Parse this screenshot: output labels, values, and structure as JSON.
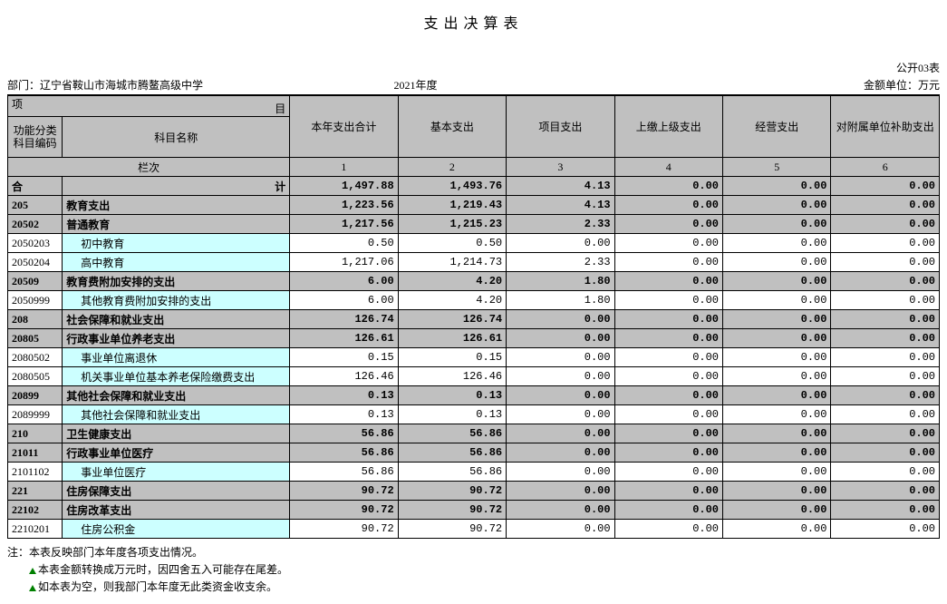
{
  "title": "支出决算表",
  "form_no": "公开03表",
  "dept_label": "部门：",
  "dept_name": "辽宁省鞍山市海城市腾鳌高级中学",
  "year": "2021年度",
  "unit": "金额单位：万元",
  "header": {
    "xm_top": "项",
    "xm_bot": "目",
    "code": "功能分类科目编码",
    "name": "科目名称",
    "c1": "本年支出合计",
    "c2": "基本支出",
    "c3": "项目支出",
    "c4": "上缴上级支出",
    "c5": "经营支出",
    "c6": "对附属单位补助支出",
    "lanci": "栏次",
    "n1": "1",
    "n2": "2",
    "n3": "3",
    "n4": "4",
    "n5": "5",
    "n6": "6",
    "total_label": "合",
    "total_label2": "计"
  },
  "total": {
    "v1": "1,497.88",
    "v2": "1,493.76",
    "v3": "4.13",
    "v4": "0.00",
    "v5": "0.00",
    "v6": "0.00"
  },
  "rows": [
    {
      "code": "205",
      "name": "教育支出",
      "bold": true,
      "v": [
        "1,223.56",
        "1,219.43",
        "4.13",
        "0.00",
        "0.00",
        "0.00"
      ]
    },
    {
      "code": "20502",
      "name": "普通教育",
      "bold": true,
      "v": [
        "1,217.56",
        "1,215.23",
        "2.33",
        "0.00",
        "0.00",
        "0.00"
      ]
    },
    {
      "code": "2050203",
      "name": "初中教育",
      "cyan": true,
      "indent": 1,
      "v": [
        "0.50",
        "0.50",
        "0.00",
        "0.00",
        "0.00",
        "0.00"
      ]
    },
    {
      "code": "2050204",
      "name": "高中教育",
      "cyan": true,
      "indent": 1,
      "v": [
        "1,217.06",
        "1,214.73",
        "2.33",
        "0.00",
        "0.00",
        "0.00"
      ]
    },
    {
      "code": "20509",
      "name": "教育费附加安排的支出",
      "bold": true,
      "v": [
        "6.00",
        "4.20",
        "1.80",
        "0.00",
        "0.00",
        "0.00"
      ]
    },
    {
      "code": "2050999",
      "name": "其他教育费附加安排的支出",
      "cyan": true,
      "indent": 1,
      "v": [
        "6.00",
        "4.20",
        "1.80",
        "0.00",
        "0.00",
        "0.00"
      ]
    },
    {
      "code": "208",
      "name": "社会保障和就业支出",
      "bold": true,
      "v": [
        "126.74",
        "126.74",
        "0.00",
        "0.00",
        "0.00",
        "0.00"
      ]
    },
    {
      "code": "20805",
      "name": "行政事业单位养老支出",
      "bold": true,
      "v": [
        "126.61",
        "126.61",
        "0.00",
        "0.00",
        "0.00",
        "0.00"
      ]
    },
    {
      "code": "2080502",
      "name": "事业单位离退休",
      "cyan": true,
      "indent": 1,
      "v": [
        "0.15",
        "0.15",
        "0.00",
        "0.00",
        "0.00",
        "0.00"
      ]
    },
    {
      "code": "2080505",
      "name": "机关事业单位基本养老保险缴费支出",
      "cyan": true,
      "indent": 1,
      "v": [
        "126.46",
        "126.46",
        "0.00",
        "0.00",
        "0.00",
        "0.00"
      ]
    },
    {
      "code": "20899",
      "name": "其他社会保障和就业支出",
      "bold": true,
      "v": [
        "0.13",
        "0.13",
        "0.00",
        "0.00",
        "0.00",
        "0.00"
      ]
    },
    {
      "code": "2089999",
      "name": "其他社会保障和就业支出",
      "cyan": true,
      "indent": 1,
      "v": [
        "0.13",
        "0.13",
        "0.00",
        "0.00",
        "0.00",
        "0.00"
      ]
    },
    {
      "code": "210",
      "name": "卫生健康支出",
      "bold": true,
      "v": [
        "56.86",
        "56.86",
        "0.00",
        "0.00",
        "0.00",
        "0.00"
      ]
    },
    {
      "code": "21011",
      "name": "行政事业单位医疗",
      "bold": true,
      "v": [
        "56.86",
        "56.86",
        "0.00",
        "0.00",
        "0.00",
        "0.00"
      ]
    },
    {
      "code": "2101102",
      "name": "事业单位医疗",
      "cyan": true,
      "indent": 1,
      "v": [
        "56.86",
        "56.86",
        "0.00",
        "0.00",
        "0.00",
        "0.00"
      ]
    },
    {
      "code": "221",
      "name": "住房保障支出",
      "bold": true,
      "v": [
        "90.72",
        "90.72",
        "0.00",
        "0.00",
        "0.00",
        "0.00"
      ]
    },
    {
      "code": "22102",
      "name": "住房改革支出",
      "bold": true,
      "v": [
        "90.72",
        "90.72",
        "0.00",
        "0.00",
        "0.00",
        "0.00"
      ]
    },
    {
      "code": "2210201",
      "name": "住房公积金",
      "cyan": true,
      "indent": 1,
      "v": [
        "90.72",
        "90.72",
        "0.00",
        "0.00",
        "0.00",
        "0.00"
      ]
    }
  ],
  "notes": {
    "n1": "注：本表反映部门本年度各项支出情况。",
    "n2": "本表金额转换成万元时，因四舍五入可能存在尾差。",
    "n3": "如本表为空，则我部门本年度无此类资金收支余。"
  },
  "colors": {
    "header_bg": "#c0c0c0",
    "detail_bg": "#ccffff",
    "triangle": "#008000"
  }
}
